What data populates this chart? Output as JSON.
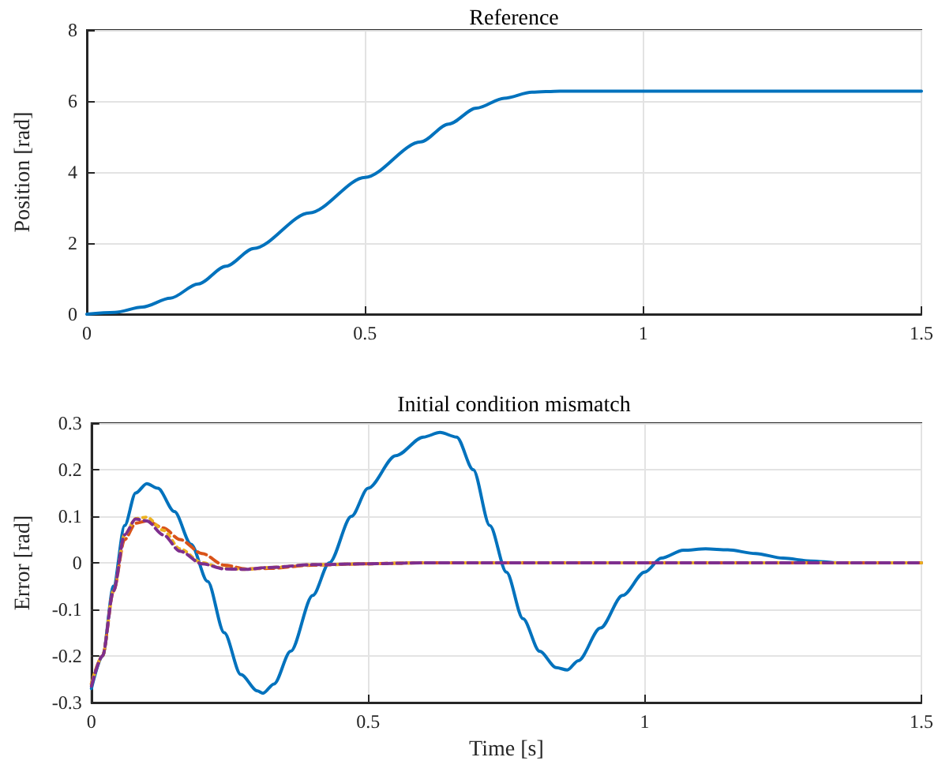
{
  "chart_data": [
    {
      "type": "line",
      "title": "Reference",
      "ylabel": "Position [rad]",
      "xlim": [
        0,
        1.5
      ],
      "xticks": [
        0,
        0.5,
        1,
        1.5
      ],
      "ylim": [
        0,
        8
      ],
      "yticks": [
        0,
        2,
        4,
        6,
        8
      ],
      "grid": true,
      "marker": "none",
      "series": [
        {
          "color": "#0072bd",
          "line_style": "solid",
          "x": [
            0,
            0.05,
            0.1,
            0.15,
            0.2,
            0.25,
            0.3,
            0.4,
            0.5,
            0.6,
            0.65,
            0.7,
            0.75,
            0.8,
            0.85,
            0.9,
            1.0,
            1.5
          ],
          "values": [
            0,
            0.05,
            0.2,
            0.45,
            0.85,
            1.35,
            1.85,
            2.85,
            3.85,
            4.85,
            5.35,
            5.8,
            6.08,
            6.25,
            6.28,
            6.28,
            6.28,
            6.28
          ]
        }
      ]
    },
    {
      "type": "line",
      "title": "Initial condition mismatch",
      "xlabel": "Time [s]",
      "ylabel": "Error [rad]",
      "xlim": [
        0,
        1.5
      ],
      "xticks": [
        0,
        0.5,
        1,
        1.5
      ],
      "ylim": [
        -0.3,
        0.3
      ],
      "yticks": [
        -0.3,
        -0.2,
        -0.1,
        0,
        0.1,
        0.2,
        0.3
      ],
      "grid": true,
      "marker": "none",
      "series": [
        {
          "color": "#0072bd",
          "line_style": "solid",
          "x": [
            0,
            0.02,
            0.04,
            0.06,
            0.08,
            0.1,
            0.12,
            0.15,
            0.18,
            0.21,
            0.24,
            0.27,
            0.3,
            0.31,
            0.33,
            0.36,
            0.4,
            0.43,
            0.47,
            0.5,
            0.55,
            0.6,
            0.63,
            0.66,
            0.69,
            0.72,
            0.75,
            0.78,
            0.81,
            0.84,
            0.86,
            0.88,
            0.92,
            0.96,
            1.0,
            1.03,
            1.07,
            1.11,
            1.15,
            1.2,
            1.25,
            1.3,
            1.35,
            1.5
          ],
          "values": [
            -0.27,
            -0.2,
            -0.05,
            0.08,
            0.15,
            0.17,
            0.16,
            0.11,
            0.04,
            -0.04,
            -0.15,
            -0.24,
            -0.275,
            -0.28,
            -0.26,
            -0.19,
            -0.07,
            0,
            0.1,
            0.16,
            0.23,
            0.27,
            0.28,
            0.27,
            0.2,
            0.08,
            -0.02,
            -0.12,
            -0.19,
            -0.225,
            -0.23,
            -0.21,
            -0.14,
            -0.07,
            -0.02,
            0.01,
            0.027,
            0.03,
            0.028,
            0.02,
            0.01,
            0.004,
            0,
            0
          ]
        },
        {
          "color": "#d95319",
          "line_style": "dashed",
          "x": [
            0,
            0.02,
            0.04,
            0.06,
            0.08,
            0.1,
            0.13,
            0.16,
            0.2,
            0.24,
            0.28,
            0.32,
            0.4,
            0.5,
            0.6,
            1.5
          ],
          "values": [
            -0.26,
            -0.2,
            -0.06,
            0.05,
            0.085,
            0.09,
            0.075,
            0.05,
            0.02,
            -0.005,
            -0.013,
            -0.012,
            -0.005,
            -0.002,
            0,
            0
          ]
        },
        {
          "color": "#edb120",
          "line_style": "dotted",
          "x": [
            0,
            0.02,
            0.04,
            0.06,
            0.08,
            0.1,
            0.13,
            0.16,
            0.2,
            0.24,
            0.28,
            0.32,
            0.4,
            0.5,
            0.6,
            1.5
          ],
          "values": [
            -0.26,
            -0.2,
            -0.06,
            0.06,
            0.095,
            0.098,
            0.07,
            0.03,
            0,
            -0.012,
            -0.014,
            -0.01,
            -0.004,
            -0.002,
            0,
            0
          ]
        },
        {
          "color": "#7e2f8e",
          "line_style": "dashed",
          "x": [
            0,
            0.02,
            0.04,
            0.06,
            0.08,
            0.1,
            0.13,
            0.16,
            0.2,
            0.24,
            0.28,
            0.32,
            0.4,
            0.5,
            0.6,
            1.5
          ],
          "values": [
            -0.265,
            -0.2,
            -0.06,
            0.06,
            0.094,
            0.09,
            0.06,
            0.025,
            -0.002,
            -0.013,
            -0.014,
            -0.01,
            -0.004,
            -0.002,
            0,
            0
          ]
        }
      ]
    }
  ]
}
